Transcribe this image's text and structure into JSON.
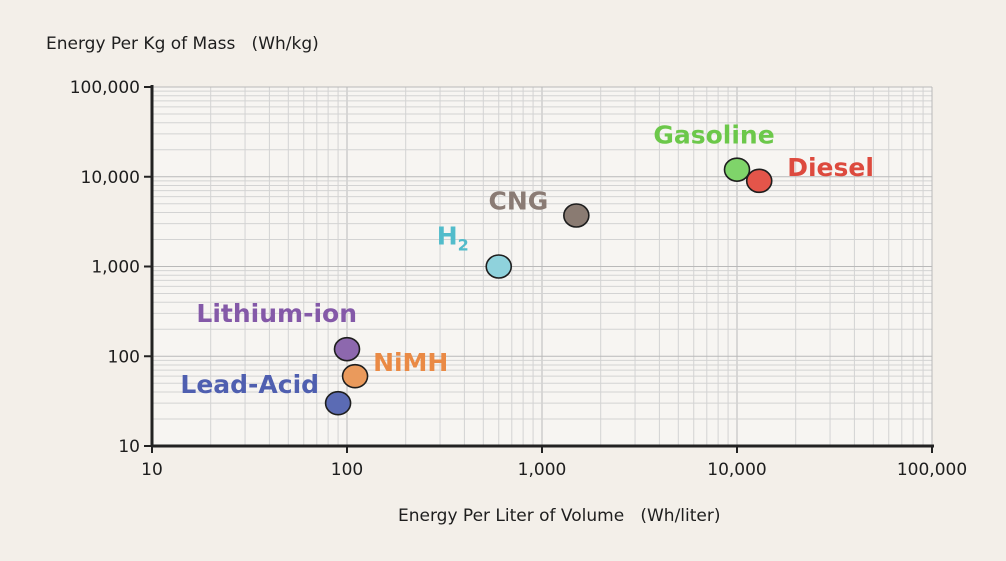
{
  "chart_data": {
    "type": "scatter",
    "title": "",
    "ylabel": "Energy Per Kg of Mass   (Wh/kg)",
    "xlabel": "Energy Per Liter of Volume   (Wh/liter)",
    "xscale": "log",
    "yscale": "log",
    "xlim": [
      10,
      100000
    ],
    "ylim": [
      10,
      100000
    ],
    "x_ticks": [
      10,
      100,
      1000,
      10000,
      100000
    ],
    "x_tick_labels": [
      "10",
      "100",
      "1,000",
      "10,000",
      "100,000"
    ],
    "y_ticks": [
      10,
      100,
      1000,
      10000,
      100000
    ],
    "y_tick_labels": [
      "10",
      "100",
      "1,000",
      "10,000",
      "100,000"
    ],
    "grid": true,
    "points": [
      {
        "label": "Lead-Acid",
        "label_sub": "",
        "x": 90,
        "y": 30,
        "color": "#5b6bb4",
        "label_color": "#4f5fb0"
      },
      {
        "label": "Lithium-ion",
        "label_sub": "",
        "x": 100,
        "y": 120,
        "color": "#8d68ae",
        "label_color": "#8459a8"
      },
      {
        "label": "NiMH",
        "label_sub": "",
        "x": 110,
        "y": 60,
        "color": "#ea9a5c",
        "label_color": "#ea8a45"
      },
      {
        "label": "H",
        "label_sub": "2",
        "x": 600,
        "y": 1000,
        "color": "#8fd2dc",
        "label_color": "#52bccb"
      },
      {
        "label": "CNG",
        "label_sub": "",
        "x": 1500,
        "y": 3700,
        "color": "#8a7b72",
        "label_color": "#8a7b74"
      },
      {
        "label": "Gasoline",
        "label_sub": "",
        "x": 10000,
        "y": 12000,
        "color": "#7fd46a",
        "label_color": "#6cc84a"
      },
      {
        "label": "Diesel",
        "label_sub": "",
        "x": 13000,
        "y": 9000,
        "color": "#e4554a",
        "label_color": "#dd4a3e"
      }
    ]
  }
}
